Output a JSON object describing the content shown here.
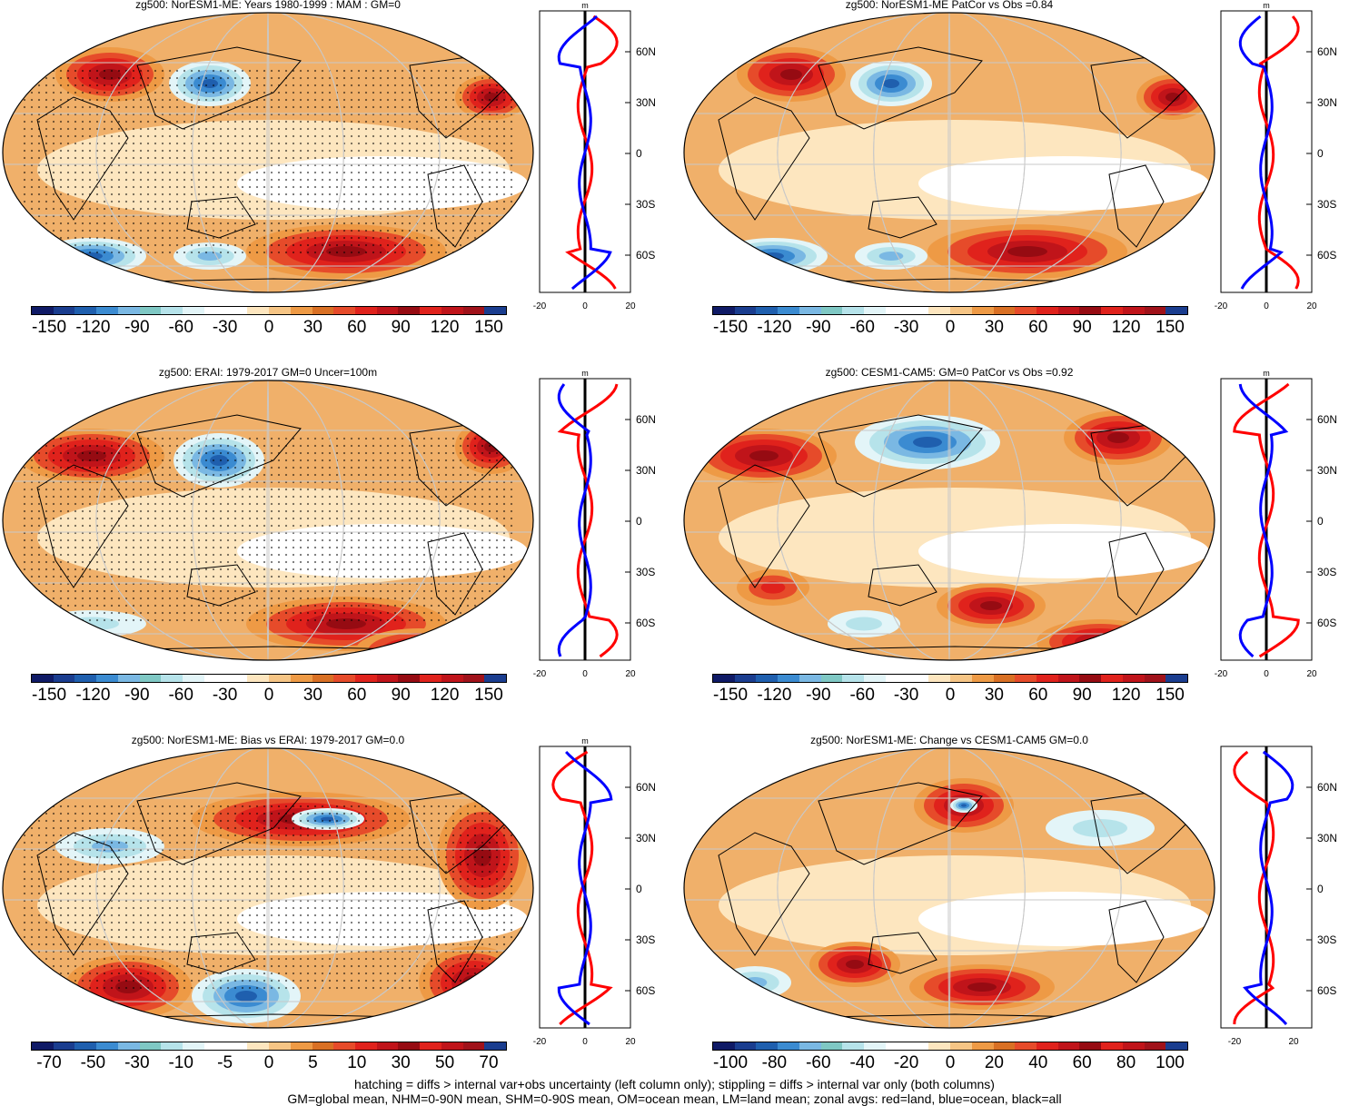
{
  "palette": [
    "#0f1a66",
    "#1a3d8f",
    "#1f5fae",
    "#3b8bd1",
    "#7ab8e3",
    "#7fc8c4",
    "#b6e3ea",
    "#e3f5f8",
    "#ffffff",
    "#ffffff",
    "#fde6bf",
    "#f6c585",
    "#ee9a45",
    "#d97024",
    "#e64b2a",
    "#e0221c",
    "#c0141a",
    "#960b12",
    "#e0221c",
    "#c0141a",
    "#a0121a",
    "#1a3d8f"
  ],
  "panels": [
    {
      "id": "p1",
      "title": "zg500: NorESM1-ME: Years 1980-1999 : MAM : GM=0",
      "colorbar_labels": [
        "-150",
        "-120",
        "-90",
        "-60",
        "-30",
        "0",
        "30",
        "60",
        "90",
        "120",
        "150"
      ],
      "stipple": true,
      "zonal_labels": {
        "unit": "m",
        "lat": [
          "60N",
          "30N",
          "0",
          "30S",
          "60S"
        ],
        "x": [
          "-20",
          "0",
          "20"
        ]
      }
    },
    {
      "id": "p2",
      "title": "zg500: NorESM1-ME PatCor vs Obs =0.84",
      "colorbar_labels": [
        "-150",
        "-120",
        "-90",
        "-60",
        "-30",
        "0",
        "30",
        "60",
        "90",
        "120",
        "150"
      ],
      "stipple": false,
      "zonal_labels": {
        "unit": "m",
        "lat": [
          "60N",
          "30N",
          "0",
          "30S",
          "60S"
        ],
        "x": [
          "-20",
          "0",
          "20"
        ]
      }
    },
    {
      "id": "p3",
      "title": "zg500: ERAI: 1979-2017 GM=0 Uncer=100m",
      "colorbar_labels": [
        "-150",
        "-120",
        "-90",
        "-60",
        "-30",
        "0",
        "30",
        "60",
        "90",
        "120",
        "150"
      ],
      "stipple": true,
      "zonal_labels": {
        "unit": "m",
        "lat": [
          "60N",
          "30N",
          "0",
          "30S",
          "60S"
        ],
        "x": [
          "-20",
          "0",
          "20"
        ]
      }
    },
    {
      "id": "p4",
      "title": "zg500: CESM1-CAM5: GM=0 PatCor vs Obs =0.92",
      "colorbar_labels": [
        "-150",
        "-120",
        "-90",
        "-60",
        "-30",
        "0",
        "30",
        "60",
        "90",
        "120",
        "150"
      ],
      "stipple": false,
      "zonal_labels": {
        "unit": "m",
        "lat": [
          "60N",
          "30N",
          "0",
          "30S",
          "60S"
        ],
        "x": [
          "-20",
          "0",
          "20"
        ]
      }
    },
    {
      "id": "p5",
      "title": "zg500: NorESM1-ME: Bias vs ERAI: 1979-2017 GM=0.0",
      "colorbar_labels": [
        "-70",
        "-50",
        "-30",
        "-10",
        "-5",
        "0",
        "5",
        "10",
        "30",
        "50",
        "70"
      ],
      "stipple": true,
      "zonal_labels": {
        "unit": "m",
        "lat": [
          "60N",
          "30N",
          "0",
          "30S",
          "60S"
        ],
        "x": [
          "-20",
          "0",
          "20"
        ]
      }
    },
    {
      "id": "p6",
      "title": "zg500: NorESM1-ME: Change vs CESM1-CAM5 GM=0.0",
      "colorbar_labels": [
        "-100",
        "-80",
        "-60",
        "-40",
        "-20",
        "0",
        "20",
        "40",
        "60",
        "80",
        "100"
      ],
      "stipple": false,
      "zonal_labels": {
        "unit": "",
        "lat": [
          "60N",
          "30N",
          "0",
          "30S",
          "60S"
        ],
        "x": [
          "-20",
          "20"
        ]
      }
    }
  ],
  "chart_data": {
    "type": "map",
    "variable": "zg500",
    "panel_titles": [
      "zg500: NorESM1-ME: Years 1980-1999 : MAM : GM=0",
      "zg500: NorESM1-ME PatCor vs Obs =0.84",
      "zg500: ERAI: 1979-2017 GM=0 Uncer=100m",
      "zg500: CESM1-CAM5: GM=0 PatCor vs Obs =0.92",
      "zg500: NorESM1-ME: Bias vs ERAI: 1979-2017 GM=0.0",
      "zg500: NorESM1-ME: Change vs CESM1-CAM5 GM=0.0"
    ],
    "zonal_profile": {
      "ylabel_ticks": [
        "60N",
        "30N",
        "0",
        "30S",
        "60S"
      ],
      "xlim": [
        -20,
        20
      ],
      "series": [
        {
          "name": "land",
          "color": "red"
        },
        {
          "name": "ocean",
          "color": "blue"
        },
        {
          "name": "all",
          "color": "black"
        }
      ]
    }
  },
  "footer": {
    "line1": "hatching = diffs > internal var+obs uncertainty (left column only); stippling = diffs > internal var only (both columns)",
    "line2": "GM=global mean, NHM=0-90N mean, SHM=0-90S mean, OM=ocean mean, LM=land mean; zonal avgs: red=land, blue=ocean, black=all"
  }
}
